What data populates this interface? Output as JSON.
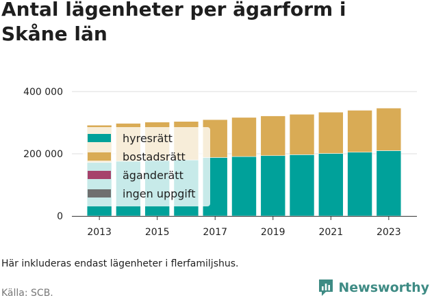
{
  "title_line1": "Antal lägenheter per ägarform i",
  "title_line2": "Skåne län",
  "note": "Här inkluderas endast lägenheter i flerfamiljshus.",
  "source": "Källa: SCB.",
  "brand": {
    "name": "Newsworthy",
    "icon": "newsworthy-logo-icon",
    "color": "#3e8b84"
  },
  "chart_data": {
    "type": "bar",
    "stacked": true,
    "categories": [
      "2013",
      "2014",
      "2015",
      "2016",
      "2017",
      "2018",
      "2019",
      "2020",
      "2021",
      "2022",
      "2023"
    ],
    "x_tick_labels": [
      "2013",
      "2015",
      "2017",
      "2019",
      "2021",
      "2023"
    ],
    "y_ticks": [
      0,
      200000,
      400000
    ],
    "y_tick_labels": [
      "0",
      "200 000",
      "400 000"
    ],
    "ylim": [
      0,
      400000
    ],
    "grid": true,
    "legend_position": "top-left",
    "series": [
      {
        "name": "hyresrätt",
        "color": "#00a19a",
        "values": [
          172000,
          176000,
          178000,
          180000,
          188000,
          191000,
          194000,
          197000,
          201000,
          205000,
          210000
        ]
      },
      {
        "name": "bostadsrätt",
        "color": "#d9ab55",
        "values": [
          120000,
          122000,
          124000,
          124000,
          122000,
          126000,
          128000,
          130000,
          133000,
          135000,
          137000
        ]
      },
      {
        "name": "äganderätt",
        "color": "#a6426b",
        "values": [
          600,
          600,
          600,
          600,
          600,
          600,
          600,
          600,
          600,
          600,
          600
        ]
      },
      {
        "name": "ingen uppgift",
        "color": "#6f6f6f",
        "values": [
          300,
          300,
          300,
          300,
          300,
          300,
          300,
          300,
          300,
          300,
          300
        ]
      }
    ]
  }
}
